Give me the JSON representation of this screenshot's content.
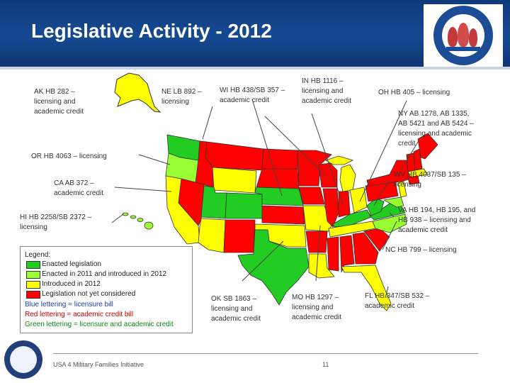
{
  "title": "Legislative Activity - 2012",
  "seal_text": "Military Community & Family Policy",
  "labels": {
    "ak": "AK HB 282 –",
    "ak_2": "licensing and",
    "ak_3": "academic credit",
    "ne": "NE LB 892 –",
    "ne_2": "licensing",
    "wi": "WI HB 438/SB 357 –",
    "wi_2": "academic credit",
    "in": "IN HB 1116 –",
    "in_2": "licensing and",
    "in_3": "academic credit",
    "oh": "OH HB 405 – licensing",
    "ny": "NY AB 1278, AB 1335,",
    "ny_2": "AB 5421 and AB 5424 –",
    "ny_3": "licensing and academic",
    "ny_4": "credit",
    "or": "OR HB 4063 – licensing",
    "ca": "CA AB 372 –",
    "ca_2": "academic credit",
    "wv": "WV HB 4037/SB 135 –",
    "wv_2": "licensing",
    "hi": "HI HB 2258/SB 2372 –",
    "hi_2": "licensing",
    "va": "VA HB 194, HB 195, and",
    "va_2": "HB 938 – licensing and",
    "va_3": "academic credit",
    "nc": "NC HB 799 – licensing",
    "ok": "OK SB 1863 –",
    "ok_2": "licensing and",
    "ok_3": "academic credit",
    "mo": "MO HB 1297 –",
    "mo_2": "licensing and",
    "mo_3": "academic credit",
    "fl": "FL HB 347/SB 532 –",
    "fl_2": "academic credit"
  },
  "legend": {
    "heading": "Legend:",
    "items": [
      {
        "label": "Enacted legislation",
        "color": "#22cc22"
      },
      {
        "label": "Enacted in 2011 and introduced in 2012",
        "color": "#99ff33"
      },
      {
        "label": "Introduced in 2012",
        "color": "#ffff00"
      },
      {
        "label": "Legislation not yet considered",
        "color": "#ff0000"
      }
    ],
    "blue_note": "Blue lettering = licensure bill",
    "red_note": "Red lettering = academic credit bill",
    "green_note": "Green lettering = licensure and academic credit"
  },
  "colors": {
    "enacted": "#22cc22",
    "enacted_2011": "#99ff33",
    "introduced": "#ffff00",
    "not_considered": "#ff0000",
    "header": "#154a92"
  },
  "footer": {
    "text": "USA 4 Military Families Initiative",
    "page": "11"
  }
}
